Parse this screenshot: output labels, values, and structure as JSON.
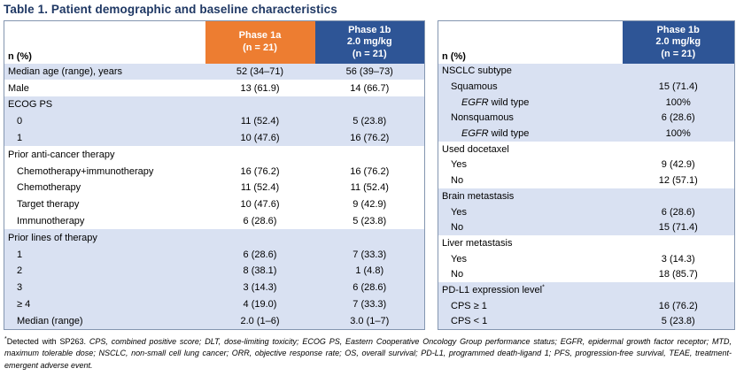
{
  "title": "Table 1. Patient demographic and baseline characteristics",
  "colors": {
    "title_navy": "#1F3864",
    "orange": "#ED7D31",
    "header_blue": "#2E5596",
    "row_shade": "#D9E1F2",
    "table_border": "#8496B0"
  },
  "left_table": {
    "label_header": "n (%)",
    "columns": [
      {
        "lines": [
          "Phase 1a",
          "(n = 21)"
        ],
        "style": "orange"
      },
      {
        "lines": [
          "Phase 1b",
          "2.0 mg/kg",
          "(n = 21)"
        ],
        "style": "blue"
      }
    ],
    "rows": [
      {
        "label": "Median age (range), years",
        "indent": 0,
        "values": [
          "52 (34–71)",
          "56 (39–73)"
        ],
        "shaded": true
      },
      {
        "label": "Male",
        "indent": 0,
        "values": [
          "13 (61.9)",
          "14 (66.7)"
        ],
        "shaded": false
      },
      {
        "label": "ECOG PS",
        "indent": 0,
        "values": [
          "",
          ""
        ],
        "shaded": true
      },
      {
        "label": "0",
        "indent": 1,
        "values": [
          "11 (52.4)",
          "5 (23.8)"
        ],
        "shaded": true
      },
      {
        "label": "1",
        "indent": 1,
        "values": [
          "10 (47.6)",
          "16 (76.2)"
        ],
        "shaded": true
      },
      {
        "label": "Prior anti-cancer therapy",
        "indent": 0,
        "values": [
          "",
          ""
        ],
        "shaded": false
      },
      {
        "label": "Chemotherapy+immunotherapy",
        "indent": 1,
        "values": [
          "16 (76.2)",
          "16 (76.2)"
        ],
        "shaded": false
      },
      {
        "label": "Chemotherapy",
        "indent": 1,
        "values": [
          "11 (52.4)",
          "11 (52.4)"
        ],
        "shaded": false
      },
      {
        "label": "Target therapy",
        "indent": 1,
        "values": [
          "10 (47.6)",
          "9 (42.9)"
        ],
        "shaded": false
      },
      {
        "label": "Immunotherapy",
        "indent": 1,
        "values": [
          "6 (28.6)",
          "5 (23.8)"
        ],
        "shaded": false
      },
      {
        "label": "Prior lines of therapy",
        "indent": 0,
        "values": [
          "",
          ""
        ],
        "shaded": true
      },
      {
        "label": "1",
        "indent": 1,
        "values": [
          "6 (28.6)",
          "7 (33.3)"
        ],
        "shaded": true
      },
      {
        "label": "2",
        "indent": 1,
        "values": [
          "8 (38.1)",
          "1 (4.8)"
        ],
        "shaded": true
      },
      {
        "label": "3",
        "indent": 1,
        "values": [
          "3 (14.3)",
          "6 (28.6)"
        ],
        "shaded": true
      },
      {
        "label": "≥ 4",
        "indent": 1,
        "values": [
          "4 (19.0)",
          "7 (33.3)"
        ],
        "shaded": true
      },
      {
        "label": "Median (range)",
        "indent": 1,
        "values": [
          "2.0 (1–6)",
          "3.0 (1–7)"
        ],
        "shaded": true
      }
    ]
  },
  "right_table": {
    "label_header": "n (%)",
    "columns": [
      {
        "lines": [
          "Phase 1b",
          "2.0 mg/kg",
          "(n = 21)"
        ],
        "style": "blue"
      }
    ],
    "rows": [
      {
        "label": "NSCLC subtype",
        "indent": 0,
        "values": [
          ""
        ],
        "shaded": true
      },
      {
        "label": "Squamous",
        "indent": 1,
        "values": [
          "15 (71.4)"
        ],
        "shaded": true
      },
      {
        "label": "EGFR wild type",
        "italic_prefix": "EGFR",
        "indent": 2,
        "values": [
          "100%"
        ],
        "shaded": true
      },
      {
        "label": "Nonsquamous",
        "indent": 1,
        "values": [
          "6 (28.6)"
        ],
        "shaded": true
      },
      {
        "label": "EGFR wild type",
        "italic_prefix": "EGFR",
        "indent": 2,
        "values": [
          "100%"
        ],
        "shaded": true
      },
      {
        "label": "Used docetaxel",
        "indent": 0,
        "values": [
          ""
        ],
        "shaded": false
      },
      {
        "label": "Yes",
        "indent": 1,
        "values": [
          "9 (42.9)"
        ],
        "shaded": false
      },
      {
        "label": "No",
        "indent": 1,
        "values": [
          "12 (57.1)"
        ],
        "shaded": false
      },
      {
        "label": "Brain metastasis",
        "indent": 0,
        "values": [
          ""
        ],
        "shaded": true
      },
      {
        "label": "Yes",
        "indent": 1,
        "values": [
          "6 (28.6)"
        ],
        "shaded": true
      },
      {
        "label": "No",
        "indent": 1,
        "values": [
          "15 (71.4)"
        ],
        "shaded": true
      },
      {
        "label": "Liver metastasis",
        "indent": 0,
        "values": [
          ""
        ],
        "shaded": false
      },
      {
        "label": "Yes",
        "indent": 1,
        "values": [
          "3 (14.3)"
        ],
        "shaded": false
      },
      {
        "label": "No",
        "indent": 1,
        "values": [
          "18 (85.7)"
        ],
        "shaded": false
      },
      {
        "label": "PD-L1 expression level",
        "sup": "*",
        "indent": 0,
        "values": [
          ""
        ],
        "shaded": true
      },
      {
        "label": "CPS ≥ 1",
        "indent": 1,
        "values": [
          "16 (76.2)"
        ],
        "shaded": true
      },
      {
        "label": "CPS < 1",
        "indent": 1,
        "values": [
          "5 (23.8)"
        ],
        "shaded": true
      }
    ]
  },
  "footnote": {
    "marker": "*",
    "roman": "Detected with SP263.",
    "italic": "CPS, combined positive score; DLT, dose-limiting toxicity; ECOG PS, Eastern Cooperative Oncology Group performance status; EGFR, epidermal growth factor receptor; MTD, maximum tolerable dose; NSCLC, non-small cell lung cancer; ORR, objective response rate; OS, overall survival; PD-L1, programmed death-ligand 1; PFS, progression-free survival, TEAE, treatment-emergent adverse event."
  }
}
